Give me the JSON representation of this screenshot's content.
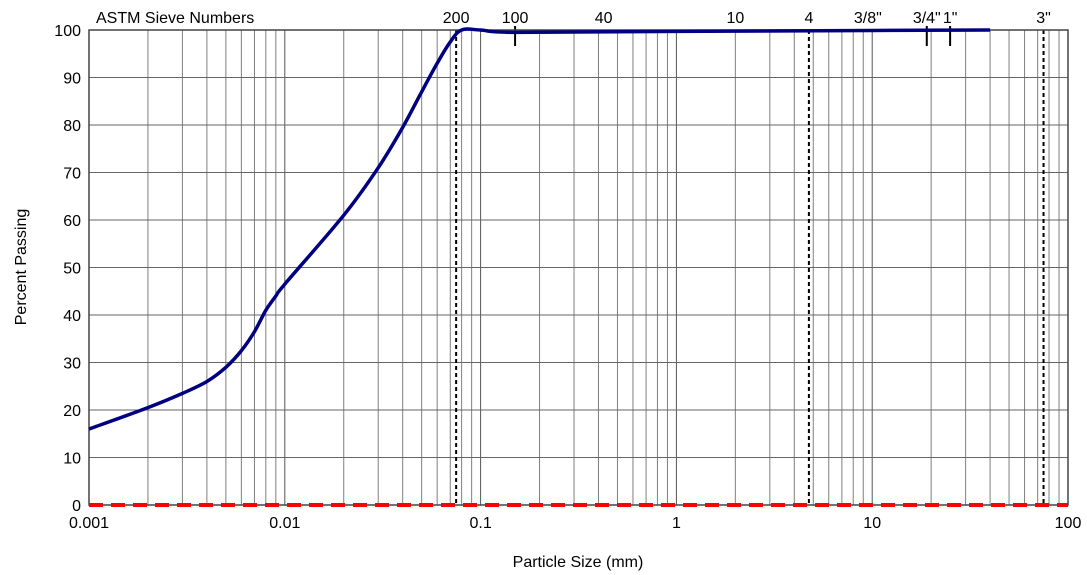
{
  "chart_data": {
    "type": "line",
    "x_scale": "log",
    "xlim": [
      0.001,
      100
    ],
    "ylim": [
      0,
      100
    ],
    "grid": true,
    "xlabel": "Particle Size (mm)",
    "ylabel": "Percent Passing",
    "sieve_header": "ASTM Sieve Numbers",
    "x_ticks": [
      {
        "value": 0.001,
        "label": "0.001"
      },
      {
        "value": 0.01,
        "label": "0.01"
      },
      {
        "value": 0.1,
        "label": "0.1"
      },
      {
        "value": 1,
        "label": "1"
      },
      {
        "value": 10,
        "label": "10"
      },
      {
        "value": 100,
        "label": "100"
      }
    ],
    "y_ticks": [
      0,
      10,
      20,
      30,
      40,
      50,
      60,
      70,
      80,
      90,
      100
    ],
    "sieves": [
      {
        "label": "200",
        "size": 0.075,
        "dashed_line": true
      },
      {
        "label": "100",
        "size": 0.15,
        "marker": true
      },
      {
        "label": "40",
        "size": 0.425
      },
      {
        "label": "10",
        "size": 2.0
      },
      {
        "label": "4",
        "size": 4.75,
        "dashed_line": true
      },
      {
        "label": "3/8\"",
        "size": 9.5
      },
      {
        "label": "3/4\"",
        "size": 19,
        "marker": true
      },
      {
        "label": "1\"",
        "size": 25,
        "marker": true
      },
      {
        "label": "3\"",
        "size": 75,
        "dashed_line": true
      }
    ],
    "series": [
      {
        "color": "#000080",
        "style": "solid",
        "x": [
          0.001,
          0.002,
          0.003,
          0.004,
          0.005,
          0.006,
          0.007,
          0.008,
          0.009,
          0.01,
          0.02,
          0.03,
          0.04,
          0.05,
          0.06,
          0.07,
          0.08,
          0.1,
          0.15,
          1,
          10,
          40
        ],
        "y": [
          16,
          20.5,
          23.5,
          26,
          29,
          32.5,
          36.5,
          41,
          44,
          46.5,
          61,
          71,
          79.5,
          87,
          93,
          97.5,
          100,
          100,
          99.5,
          99.7,
          99.9,
          100
        ]
      },
      {
        "color": "#ff0000",
        "style": "dashed",
        "x": [
          0.001,
          100
        ],
        "y": [
          0,
          0
        ]
      }
    ]
  }
}
